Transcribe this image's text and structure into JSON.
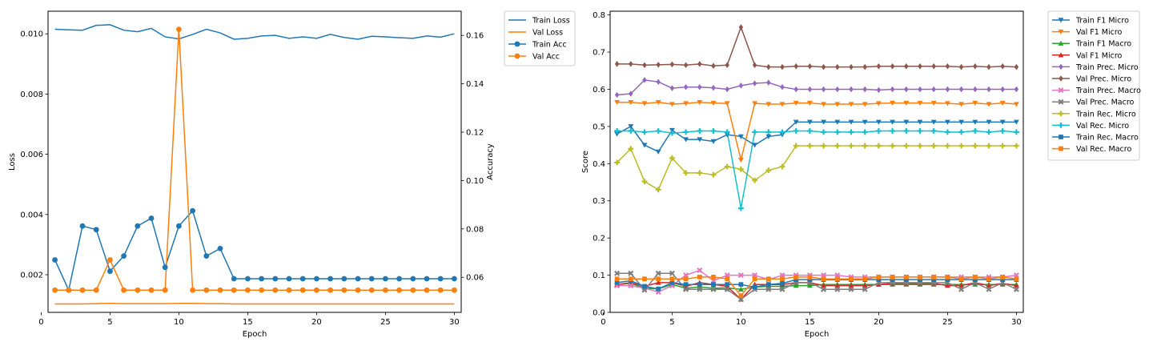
{
  "chart_data": [
    {
      "type": "line",
      "xlabel": "Epoch",
      "ylabel": "Loss",
      "y2label": "Accuracy",
      "x": [
        1,
        2,
        3,
        4,
        5,
        6,
        7,
        8,
        9,
        10,
        11,
        12,
        13,
        14,
        15,
        16,
        17,
        18,
        19,
        20,
        21,
        22,
        23,
        24,
        25,
        26,
        27,
        28,
        29,
        30
      ],
      "xlim": [
        0.5,
        30.5
      ],
      "xticks": [
        "0",
        "5",
        "10",
        "15",
        "20",
        "25",
        "30"
      ],
      "xtick_values": [
        0,
        5,
        10,
        15,
        20,
        25,
        30
      ],
      "ylim": [
        0.00075,
        0.01075
      ],
      "yticks": [
        "0.002",
        "0.004",
        "0.006",
        "0.008",
        "0.010"
      ],
      "ytick_values": [
        0.002,
        0.004,
        0.006,
        0.008,
        0.01
      ],
      "y2lim": [
        0.0455,
        0.17
      ],
      "y2ticks": [
        "0.06",
        "0.08",
        "0.10",
        "0.12",
        "0.14",
        "0.16"
      ],
      "y2tick_values": [
        0.06,
        0.08,
        0.1,
        0.12,
        0.14,
        0.16
      ],
      "legend_position": "outside-right",
      "series": [
        {
          "name": "Train Loss",
          "axis": "left",
          "color": "#1f77b4",
          "marker": "none",
          "values": [
            0.01015,
            0.01013,
            0.01012,
            0.01028,
            0.0103,
            0.01012,
            0.01007,
            0.01018,
            0.0099,
            0.00983,
            0.00998,
            0.01015,
            0.01003,
            0.00982,
            0.00985,
            0.00993,
            0.00995,
            0.00985,
            0.0099,
            0.00985,
            0.00998,
            0.00988,
            0.00982,
            0.00992,
            0.0099,
            0.00987,
            0.00985,
            0.00993,
            0.00989,
            0.01
          ]
        },
        {
          "name": "Val Loss",
          "axis": "left",
          "color": "#ff7f0e",
          "marker": "none",
          "values": [
            0.00103,
            0.00103,
            0.00103,
            0.00104,
            0.00105,
            0.00104,
            0.00104,
            0.00104,
            0.00104,
            0.00105,
            0.00105,
            0.00104,
            0.00104,
            0.00103,
            0.00103,
            0.00103,
            0.00103,
            0.00103,
            0.00103,
            0.00103,
            0.00103,
            0.00103,
            0.00103,
            0.00103,
            0.00103,
            0.00103,
            0.00103,
            0.00103,
            0.00103,
            0.00103
          ]
        },
        {
          "name": "Train Acc",
          "axis": "right",
          "color": "#1f77b4",
          "marker": "circle",
          "values": [
            0.0672,
            0.0547,
            0.0812,
            0.0797,
            0.0625,
            0.0688,
            0.0812,
            0.0844,
            0.0641,
            0.0812,
            0.0875,
            0.0688,
            0.0719,
            0.0594,
            0.0594,
            0.0594,
            0.0594,
            0.0594,
            0.0594,
            0.0594,
            0.0594,
            0.0594,
            0.0594,
            0.0594,
            0.0594,
            0.0594,
            0.0594,
            0.0594,
            0.0594,
            0.0594
          ]
        },
        {
          "name": "Val Acc",
          "axis": "right",
          "color": "#ff7f0e",
          "marker": "circle",
          "values": [
            0.0547,
            0.0547,
            0.0547,
            0.0547,
            0.0672,
            0.0547,
            0.0547,
            0.0547,
            0.0547,
            0.1625,
            0.0547,
            0.0547,
            0.0547,
            0.0547,
            0.0547,
            0.0547,
            0.0547,
            0.0547,
            0.0547,
            0.0547,
            0.0547,
            0.0547,
            0.0547,
            0.0547,
            0.0547,
            0.0547,
            0.0547,
            0.0547,
            0.0547,
            0.0547
          ]
        }
      ]
    },
    {
      "type": "line",
      "xlabel": "Epoch",
      "ylabel": "Score",
      "x": [
        1,
        2,
        3,
        4,
        5,
        6,
        7,
        8,
        9,
        10,
        11,
        12,
        13,
        14,
        15,
        16,
        17,
        18,
        19,
        20,
        21,
        22,
        23,
        24,
        25,
        26,
        27,
        28,
        29,
        30
      ],
      "xlim": [
        0.5,
        30.5
      ],
      "xticks": [
        "0",
        "5",
        "10",
        "15",
        "20",
        "25",
        "30"
      ],
      "xtick_values": [
        0,
        5,
        10,
        15,
        20,
        25,
        30
      ],
      "ylim": [
        0.0,
        0.81
      ],
      "yticks": [
        "0.0",
        "0.1",
        "0.2",
        "0.3",
        "0.4",
        "0.5",
        "0.6",
        "0.7",
        "0.8"
      ],
      "ytick_values": [
        0.0,
        0.1,
        0.2,
        0.3,
        0.4,
        0.5,
        0.6,
        0.7,
        0.8
      ],
      "legend_position": "outside-right",
      "series": [
        {
          "name": "Train F1 Micro",
          "color": "#1f77b4",
          "marker": "tri_down",
          "values": [
            0.48,
            0.5,
            0.45,
            0.432,
            0.49,
            0.465,
            0.465,
            0.46,
            0.478,
            0.473,
            0.45,
            0.473,
            0.478,
            0.512,
            0.512,
            0.512,
            0.512,
            0.512,
            0.512,
            0.512,
            0.512,
            0.512,
            0.512,
            0.512,
            0.512,
            0.512,
            0.512,
            0.512,
            0.512,
            0.512
          ]
        },
        {
          "name": "Val F1 Micro",
          "color": "#ff7f0e",
          "marker": "tri_down",
          "values": [
            0.565,
            0.565,
            0.562,
            0.565,
            0.56,
            0.562,
            0.565,
            0.563,
            0.562,
            0.41,
            0.562,
            0.56,
            0.56,
            0.563,
            0.563,
            0.56,
            0.56,
            0.56,
            0.56,
            0.562,
            0.563,
            0.563,
            0.563,
            0.563,
            0.562,
            0.56,
            0.563,
            0.56,
            0.563,
            0.56
          ]
        },
        {
          "name": "Train F1 Macro",
          "color": "#2ca02c",
          "marker": "tri_up",
          "values": [
            0.075,
            0.078,
            0.065,
            0.063,
            0.075,
            0.065,
            0.068,
            0.065,
            0.066,
            0.062,
            0.068,
            0.07,
            0.07,
            0.072,
            0.072,
            0.075,
            0.075,
            0.075,
            0.075,
            0.075,
            0.075,
            0.075,
            0.075,
            0.075,
            0.075,
            0.075,
            0.075,
            0.075,
            0.075,
            0.075
          ]
        },
        {
          "name": "Val F1 Micro",
          "color": "#d62728",
          "marker": "tri_up",
          "values": [
            0.075,
            0.08,
            0.07,
            0.08,
            0.08,
            0.07,
            0.08,
            0.075,
            0.07,
            0.035,
            0.075,
            0.075,
            0.075,
            0.08,
            0.08,
            0.072,
            0.072,
            0.072,
            0.072,
            0.075,
            0.078,
            0.078,
            0.078,
            0.078,
            0.072,
            0.072,
            0.08,
            0.072,
            0.078,
            0.072
          ]
        },
        {
          "name": "Train Prec. Micro",
          "color": "#9467bd",
          "marker": "diamond",
          "values": [
            0.585,
            0.588,
            0.625,
            0.62,
            0.603,
            0.606,
            0.606,
            0.604,
            0.6,
            0.61,
            0.616,
            0.618,
            0.606,
            0.6,
            0.6,
            0.6,
            0.6,
            0.6,
            0.6,
            0.598,
            0.6,
            0.6,
            0.6,
            0.6,
            0.6,
            0.6,
            0.6,
            0.6,
            0.6,
            0.6
          ]
        },
        {
          "name": "Val Prec. Micro",
          "color": "#8c564b",
          "marker": "diamond",
          "values": [
            0.668,
            0.668,
            0.665,
            0.666,
            0.667,
            0.665,
            0.668,
            0.663,
            0.665,
            0.767,
            0.665,
            0.66,
            0.66,
            0.662,
            0.662,
            0.66,
            0.66,
            0.66,
            0.66,
            0.662,
            0.662,
            0.662,
            0.662,
            0.662,
            0.662,
            0.66,
            0.662,
            0.66,
            0.662,
            0.66
          ]
        },
        {
          "name": "Train Prec. Macro",
          "color": "#e377c2",
          "marker": "x",
          "values": [
            0.072,
            0.072,
            0.065,
            0.055,
            0.072,
            0.1,
            0.113,
            0.085,
            0.1,
            0.1,
            0.1,
            0.088,
            0.1,
            0.1,
            0.1,
            0.1,
            0.1,
            0.095,
            0.095,
            0.095,
            0.095,
            0.095,
            0.095,
            0.095,
            0.095,
            0.095,
            0.095,
            0.095,
            0.095,
            0.1
          ]
        },
        {
          "name": "Val Prec. Macro",
          "color": "#7f7f7f",
          "marker": "x",
          "values": [
            0.105,
            0.105,
            0.06,
            0.105,
            0.105,
            0.062,
            0.062,
            0.062,
            0.062,
            0.035,
            0.062,
            0.062,
            0.062,
            0.08,
            0.08,
            0.062,
            0.062,
            0.062,
            0.062,
            0.08,
            0.08,
            0.08,
            0.08,
            0.08,
            0.08,
            0.062,
            0.08,
            0.062,
            0.08,
            0.062
          ]
        },
        {
          "name": "Train Rec. Micro",
          "color": "#bcbd22",
          "marker": "plus",
          "values": [
            0.403,
            0.44,
            0.352,
            0.33,
            0.415,
            0.375,
            0.375,
            0.37,
            0.392,
            0.385,
            0.355,
            0.382,
            0.392,
            0.448,
            0.448,
            0.448,
            0.448,
            0.448,
            0.448,
            0.448,
            0.448,
            0.448,
            0.448,
            0.448,
            0.448,
            0.448,
            0.448,
            0.448,
            0.448,
            0.448
          ]
        },
        {
          "name": "Val Rec. Micro",
          "color": "#17becf",
          "marker": "plus",
          "values": [
            0.488,
            0.488,
            0.485,
            0.488,
            0.482,
            0.485,
            0.488,
            0.488,
            0.485,
            0.28,
            0.485,
            0.485,
            0.485,
            0.488,
            0.488,
            0.485,
            0.485,
            0.485,
            0.485,
            0.488,
            0.488,
            0.488,
            0.488,
            0.488,
            0.485,
            0.485,
            0.488,
            0.485,
            0.488,
            0.485
          ]
        },
        {
          "name": "Train Rec. Macro",
          "color": "#1f77b4",
          "marker": "square",
          "values": [
            0.08,
            0.085,
            0.07,
            0.063,
            0.08,
            0.075,
            0.075,
            0.075,
            0.075,
            0.075,
            0.068,
            0.075,
            0.078,
            0.088,
            0.088,
            0.088,
            0.088,
            0.088,
            0.088,
            0.088,
            0.088,
            0.088,
            0.088,
            0.088,
            0.088,
            0.088,
            0.088,
            0.088,
            0.088,
            0.088
          ]
        },
        {
          "name": "Val Rec. Macro",
          "color": "#ff7f0e",
          "marker": "square",
          "values": [
            0.09,
            0.09,
            0.09,
            0.09,
            0.09,
            0.09,
            0.095,
            0.095,
            0.09,
            0.045,
            0.09,
            0.09,
            0.09,
            0.095,
            0.095,
            0.09,
            0.09,
            0.09,
            0.09,
            0.095,
            0.095,
            0.095,
            0.095,
            0.095,
            0.095,
            0.09,
            0.095,
            0.09,
            0.095,
            0.09
          ]
        }
      ]
    }
  ]
}
